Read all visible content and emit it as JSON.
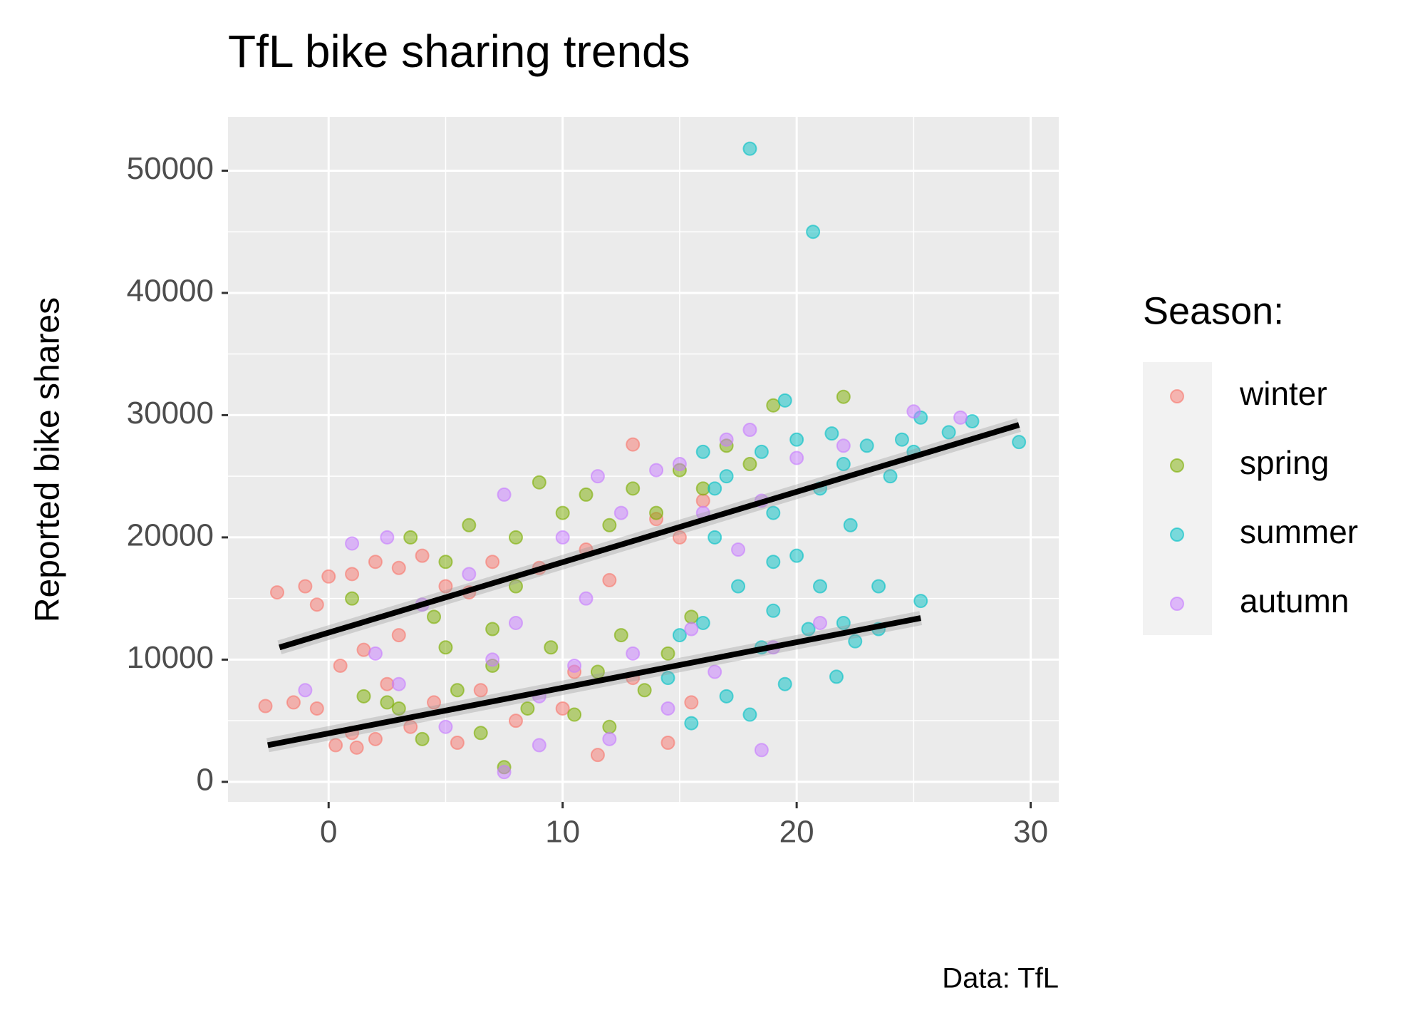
{
  "chart_data": {
    "type": "scatter",
    "title": "TfL bike sharing trends",
    "y_label": "Reported bike shares",
    "caption": "Data: TfL",
    "legend_title": "Season:",
    "legend": "right",
    "grid": true,
    "xlim": [
      -4.3,
      31.2
    ],
    "ylim": [
      -1640,
      54400
    ],
    "xticks": [
      0,
      10,
      20,
      30
    ],
    "yticks": [
      0,
      10000,
      20000,
      30000,
      40000,
      50000
    ],
    "series": [
      {
        "name": "winter",
        "color": "#F8766D",
        "x": [
          -2.7,
          -2.2,
          -1.5,
          -1,
          -0.5,
          0,
          0.3,
          0.5,
          1,
          1.2,
          1.5,
          2,
          2,
          2.5,
          3,
          3.5,
          4,
          4.5,
          5,
          5.5,
          6,
          6.5,
          7,
          8,
          9,
          10,
          11,
          11.5,
          12,
          13,
          13,
          14,
          14.5,
          15,
          15.5,
          16,
          10.5,
          3,
          -0.5,
          1
        ],
        "values": [
          6200,
          15500,
          6500,
          16000,
          6000,
          16800,
          3000,
          9500,
          17000,
          2800,
          10800,
          18000,
          3500,
          8000,
          17500,
          4500,
          18500,
          6500,
          16000,
          3200,
          15500,
          7500,
          18000,
          5000,
          17500,
          6000,
          19000,
          2200,
          16500,
          27600,
          8500,
          21500,
          3200,
          20000,
          6500,
          23000,
          9000,
          12000,
          14500,
          4000
        ]
      },
      {
        "name": "spring",
        "color": "#7CAE00",
        "x": [
          1,
          1.5,
          2.5,
          3.5,
          4,
          4.5,
          5,
          5.5,
          6,
          6.5,
          7,
          7.5,
          8,
          8.5,
          9,
          9.5,
          10,
          10.5,
          11,
          11.5,
          12,
          12.5,
          13,
          13.5,
          14,
          14.5,
          15,
          15.5,
          16,
          17,
          18,
          19,
          22,
          5,
          8,
          12,
          3,
          7
        ],
        "values": [
          15000,
          7000,
          6500,
          20000,
          3500,
          13500,
          18000,
          7500,
          21000,
          4000,
          9500,
          1200,
          20000,
          6000,
          24500,
          11000,
          22000,
          5500,
          23500,
          9000,
          21000,
          12000,
          24000,
          7500,
          22000,
          10500,
          25500,
          13500,
          24000,
          27500,
          26000,
          30800,
          31500,
          11000,
          16000,
          4500,
          6000,
          12500
        ]
      },
      {
        "name": "summer",
        "color": "#00BFC4",
        "x": [
          14.5,
          15,
          15.5,
          16,
          16,
          16.5,
          17,
          17,
          17.5,
          18,
          18,
          18.5,
          18.5,
          19,
          19,
          19.5,
          19.5,
          20,
          20,
          20.5,
          20.7,
          21,
          21,
          21.5,
          21.7,
          22,
          22,
          22.5,
          23,
          23.5,
          23.5,
          24,
          24.5,
          25,
          25.3,
          25.3,
          26.5,
          27.5,
          29.5,
          16.5,
          19,
          22.3
        ],
        "values": [
          8500,
          12000,
          4800,
          27000,
          13000,
          20000,
          7000,
          25000,
          16000,
          51800,
          5500,
          11000,
          27000,
          14000,
          22000,
          31200,
          8000,
          18500,
          28000,
          12500,
          45000,
          24000,
          16000,
          28500,
          8600,
          13000,
          26000,
          11500,
          27500,
          16000,
          12500,
          25000,
          28000,
          27000,
          14800,
          29800,
          28600,
          29500,
          27800,
          24000,
          18000,
          21000
        ]
      },
      {
        "name": "autumn",
        "color": "#C77CFF",
        "x": [
          -1,
          1,
          2.5,
          3,
          4,
          5,
          6,
          7,
          7.5,
          7.5,
          8,
          9,
          10,
          10.5,
          11.5,
          12,
          12.5,
          13,
          14,
          14.5,
          15,
          15.5,
          16,
          16.5,
          17,
          17.5,
          18,
          18.5,
          18.5,
          19,
          20,
          21,
          22,
          25,
          27,
          9,
          11,
          2
        ],
        "values": [
          7500,
          19500,
          20000,
          8000,
          14500,
          4500,
          17000,
          10000,
          23500,
          800,
          13000,
          7000,
          20000,
          9500,
          25000,
          3500,
          22000,
          10500,
          25500,
          6000,
          26000,
          12500,
          22000,
          9000,
          28000,
          19000,
          28800,
          2600,
          23000,
          11000,
          26500,
          13000,
          27500,
          30300,
          29800,
          3000,
          15000,
          10500
        ]
      }
    ],
    "trend_lines": [
      {
        "color": "#000000",
        "x": [
          -2.1,
          29.5
        ],
        "values": [
          11000,
          29200
        ]
      },
      {
        "color": "#000000",
        "x": [
          -2.6,
          25.3
        ],
        "values": [
          3000,
          13400
        ]
      }
    ]
  }
}
